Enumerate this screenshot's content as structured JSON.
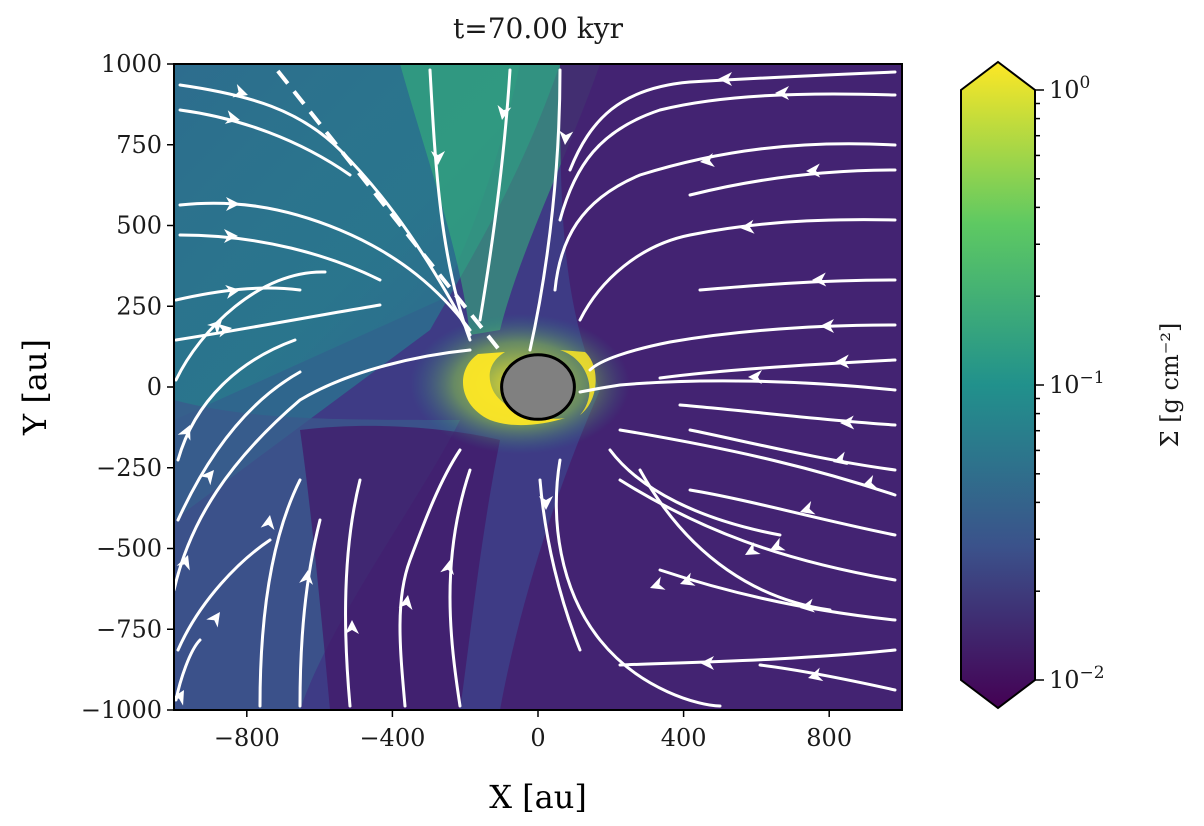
{
  "chart_data": {
    "type": "heatmap",
    "title": "t=70.00 kyr",
    "xlabel": "X [au]",
    "ylabel": "Y [au]",
    "xlim": [
      -1000,
      1000
    ],
    "ylim": [
      -1000,
      1000
    ],
    "x_ticks": [
      -800,
      -400,
      0,
      400,
      800
    ],
    "x_tick_labels": [
      "−800",
      "−400",
      "0",
      "400",
      "800"
    ],
    "y_ticks": [
      1000,
      750,
      500,
      250,
      0,
      -250,
      -500,
      -750,
      -1000
    ],
    "y_tick_labels": [
      "1000",
      "750",
      "500",
      "250",
      "0",
      "−250",
      "−500",
      "−750",
      "−1000"
    ],
    "colorbar": {
      "label": "Σ [g cm⁻²]",
      "scale": "log",
      "range": [
        0.01,
        1
      ],
      "ticks": [
        1,
        0.1,
        0.01
      ],
      "base_label": "10",
      "exponents": [
        "0",
        "−1",
        "−2"
      ],
      "extend": "both",
      "colormap": "viridis"
    },
    "sink": {
      "x": 0,
      "y": 0,
      "radius": 100,
      "color": "#808080"
    },
    "dashed_line": {
      "x": [
        -110,
        -730
      ],
      "y": [
        120,
        1000
      ],
      "color": "#ffffff"
    },
    "grid": false
  },
  "colors": {
    "viridis": [
      "#440154",
      "#3b528b",
      "#21918c",
      "#5ec962",
      "#fde725"
    ],
    "stream": "#ffffff"
  }
}
